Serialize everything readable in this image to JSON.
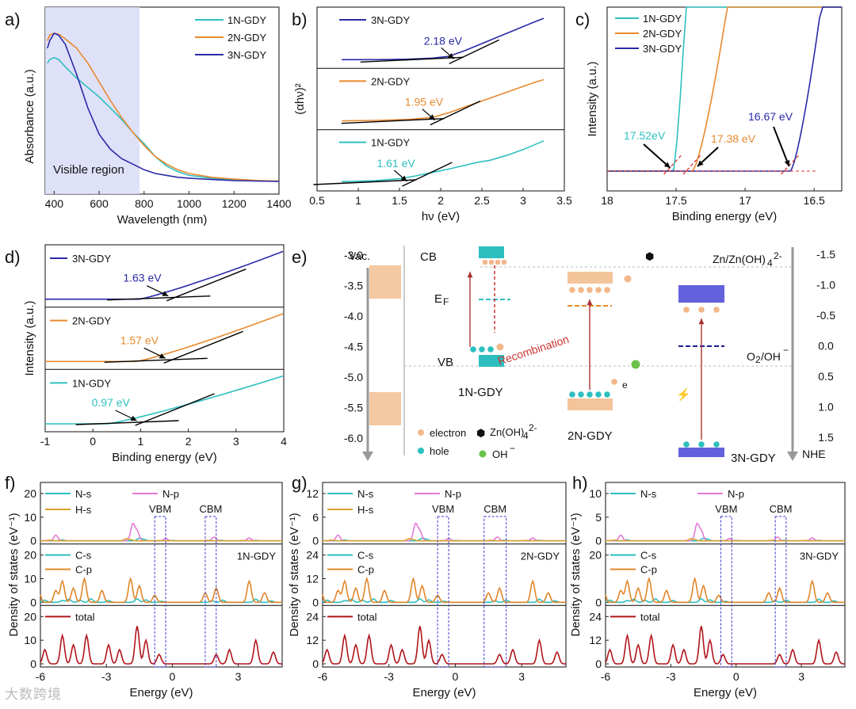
{
  "colors": {
    "c1": "#2dbfbf",
    "c2": "#e8892e",
    "c3": "#2a2aa8",
    "total": "#b0151a",
    "npink": "#e57ad6",
    "hs": "#d9a12e",
    "cs": "#2dbfbf",
    "cp": "#e0862a"
  },
  "watermark": "大数跨境",
  "chart_data": [
    {
      "panel": "a)",
      "type": "line",
      "xlabel": "Wavelength (nm)",
      "ylabel": "Absorbance (a.u.)",
      "xlim": [
        360,
        1400
      ],
      "xticks": [
        400,
        600,
        800,
        1000,
        1200,
        1400
      ],
      "region_label": "Visible region",
      "region": [
        360,
        780
      ],
      "series": [
        {
          "name": "1N-GDY",
          "x": [
            370,
            380,
            400,
            420,
            450,
            500,
            550,
            600,
            650,
            700,
            750,
            800,
            850,
            900,
            950,
            1000,
            1100,
            1200,
            1300,
            1400
          ],
          "y": [
            0.7,
            0.72,
            0.73,
            0.72,
            0.68,
            0.62,
            0.57,
            0.52,
            0.46,
            0.4,
            0.33,
            0.27,
            0.2,
            0.15,
            0.12,
            0.1,
            0.085,
            0.075,
            0.07,
            0.068
          ]
        },
        {
          "name": "2N-GDY",
          "x": [
            370,
            380,
            400,
            420,
            450,
            500,
            550,
            600,
            650,
            700,
            750,
            800,
            850,
            900,
            950,
            1000,
            1100,
            1200,
            1300,
            1400
          ],
          "y": [
            0.82,
            0.85,
            0.86,
            0.855,
            0.83,
            0.78,
            0.7,
            0.6,
            0.5,
            0.41,
            0.33,
            0.26,
            0.2,
            0.16,
            0.13,
            0.11,
            0.09,
            0.08,
            0.073,
            0.07
          ]
        },
        {
          "name": "3N-GDY",
          "x": [
            370,
            380,
            400,
            420,
            450,
            500,
            550,
            600,
            650,
            700,
            750,
            800,
            850,
            900,
            950,
            1000,
            1100,
            1200,
            1300,
            1400
          ],
          "y": [
            0.78,
            0.82,
            0.86,
            0.85,
            0.8,
            0.64,
            0.46,
            0.32,
            0.24,
            0.19,
            0.16,
            0.13,
            0.11,
            0.1,
            0.09,
            0.085,
            0.078,
            0.072,
            0.07,
            0.068
          ]
        }
      ]
    },
    {
      "panel": "b)",
      "type": "line",
      "xlabel": "hν (eV)",
      "ylabel": "(αhν)²",
      "xlim": [
        0.5,
        3.5
      ],
      "xticks": [
        0.5,
        1.0,
        1.5,
        2.0,
        2.5,
        3.0,
        3.5
      ],
      "subplots": [
        {
          "name": "3N-GDY",
          "gap": "2.18 eV",
          "gap_x": 2.18,
          "x": [
            0.8,
            1.2,
            1.6,
            1.9,
            2.1,
            2.3,
            2.5,
            2.7,
            2.9,
            3.1,
            3.25
          ],
          "y": [
            0.05,
            0.05,
            0.06,
            0.08,
            0.12,
            0.24,
            0.38,
            0.52,
            0.66,
            0.8,
            0.9
          ]
        },
        {
          "name": "2N-GDY",
          "gap": "1.95 eV",
          "gap_x": 1.95,
          "x": [
            0.8,
            1.2,
            1.6,
            1.9,
            2.1,
            2.3,
            2.5,
            2.7,
            2.9,
            3.1,
            3.25
          ],
          "y": [
            0.05,
            0.06,
            0.08,
            0.12,
            0.22,
            0.34,
            0.46,
            0.58,
            0.7,
            0.82,
            0.9
          ]
        },
        {
          "name": "1N-GDY",
          "gap": "1.61 eV",
          "gap_x": 1.61,
          "x": [
            0.8,
            1.2,
            1.5,
            1.7,
            1.9,
            2.1,
            2.3,
            2.45,
            2.6,
            2.8,
            3.0,
            3.25
          ],
          "y": [
            0.06,
            0.08,
            0.12,
            0.18,
            0.25,
            0.32,
            0.4,
            0.46,
            0.5,
            0.6,
            0.72,
            0.9
          ]
        }
      ]
    },
    {
      "panel": "c)",
      "type": "line",
      "xlabel": "Binding energy (eV)",
      "ylabel": "Intensity (a.u.)",
      "xlim": [
        18.0,
        16.3
      ],
      "xticks": [
        18.0,
        17.5,
        17.0,
        16.5
      ],
      "series": [
        {
          "name": "1N-GDY",
          "cutoff": "17.52eV",
          "cutoff_x": 17.52
        },
        {
          "name": "2N-GDY",
          "cutoff": "17.38 eV",
          "cutoff_x": 17.38
        },
        {
          "name": "3N-GDY",
          "cutoff": "16.67 eV",
          "cutoff_x": 16.67
        }
      ]
    },
    {
      "panel": "d)",
      "type": "line",
      "xlabel": "Binding energy (eV)",
      "ylabel": "Intensity (a.u.)",
      "xlim": [
        -1,
        4
      ],
      "xticks": [
        -1,
        0,
        1,
        2,
        3,
        4
      ],
      "subplots": [
        {
          "name": "3N-GDY",
          "edge": "1.63 eV",
          "edge_x": 1.63
        },
        {
          "name": "2N-GDY",
          "edge": "1.57 eV",
          "edge_x": 1.57
        },
        {
          "name": "1N-GDY",
          "edge": "0.97 eV",
          "edge_x": 0.97
        }
      ]
    },
    {
      "panel": "e)",
      "type": "diagram",
      "left_axis": {
        "label": "Vac.",
        "ticks": [
          "-3.0",
          "-3.5",
          "-4.0",
          "-4.5",
          "-5.0",
          "-5.5",
          "-6.0"
        ]
      },
      "right_axis": {
        "label": "NHE",
        "ticks": [
          "-1.5",
          "-1.0",
          "-0.5",
          "0.0",
          "0.5",
          "1.0",
          "1.5"
        ]
      },
      "labels": {
        "cb": "CB",
        "vb": "VB",
        "ef": "E",
        "ef_sub": "F",
        "recombination": "Recombination",
        "zn": "Zn/Zn(OH)",
        "zn_sub": "4",
        "zn_sup": "2-",
        "o2": "O",
        "o2_sub": "2",
        "o2_tail": "/OH",
        "o2_sup": "−",
        "e_minus": "e",
        "e_sup": "−",
        "s1": "1N-GDY",
        "s2": "2N-GDY",
        "s3": "3N-GDY"
      },
      "legend": {
        "electron": "electron",
        "hole": "hole",
        "zinc": "Zn(OH)",
        "zinc_sub": "4",
        "zinc_sup": "2-",
        "oh": "OH",
        "oh_sup": "−"
      }
    },
    {
      "panel": "f)",
      "type": "line",
      "material": "1N-GDY",
      "xlabel": "Energy (eV)",
      "ylabel": "Density of states (eV⁻¹)",
      "xlim": [
        -6,
        5
      ],
      "xticks": [
        -6,
        -3,
        0,
        3
      ],
      "top": {
        "yticks": [
          "0",
          "10",
          "20"
        ],
        "legend": [
          "N-s",
          "N-p",
          "H-s"
        ]
      },
      "mid": {
        "yticks": [
          "0",
          "10",
          "20"
        ],
        "legend": [
          "C-s",
          "C-p"
        ]
      },
      "bot": {
        "yticks": [
          "0",
          "10",
          "20"
        ],
        "legend": [
          "total"
        ]
      },
      "vbm": "VBM",
      "cbm": "CBM",
      "vbm_range": [
        -0.8,
        -0.3
      ],
      "cbm_range": [
        1.5,
        2.0
      ]
    },
    {
      "panel": "g)",
      "type": "line",
      "material": "2N-GDY",
      "xlabel": "Energy (eV)",
      "ylabel": "Density of states (eV⁻¹)",
      "xlim": [
        -6,
        5
      ],
      "xticks": [
        -6,
        -3,
        0,
        3
      ],
      "top": {
        "yticks": [
          "0",
          "6",
          "12"
        ],
        "legend": [
          "N-s",
          "N-p",
          "H-s"
        ]
      },
      "mid": {
        "yticks": [
          "0",
          "12",
          "24"
        ],
        "legend": [
          "C-s",
          "C-p"
        ]
      },
      "bot": {
        "yticks": [
          "0",
          "12",
          "24"
        ],
        "legend": [
          "total"
        ]
      },
      "vbm": "VBM",
      "cbm": "CBM",
      "vbm_range": [
        -0.8,
        -0.3
      ],
      "cbm_range": [
        1.3,
        2.3
      ]
    },
    {
      "panel": "h)",
      "type": "line",
      "material": "3N-GDY",
      "xlabel": "Energy (eV)",
      "ylabel": "Density of states (eV⁻¹)",
      "xlim": [
        -6,
        5
      ],
      "xticks": [
        -6,
        -3,
        0,
        3
      ],
      "top": {
        "yticks": [
          "0",
          "5",
          "10"
        ],
        "legend": [
          "N-s",
          "N-p"
        ]
      },
      "mid": {
        "yticks": [
          "0",
          "20"
        ],
        "legend": [
          "C-s",
          "C-p"
        ]
      },
      "bot": {
        "yticks": [
          "0",
          "12",
          "24"
        ],
        "legend": [
          "total"
        ]
      },
      "vbm": "VBM",
      "cbm": "CBM",
      "vbm_range": [
        -0.7,
        -0.2
      ],
      "cbm_range": [
        1.8,
        2.3
      ]
    }
  ]
}
